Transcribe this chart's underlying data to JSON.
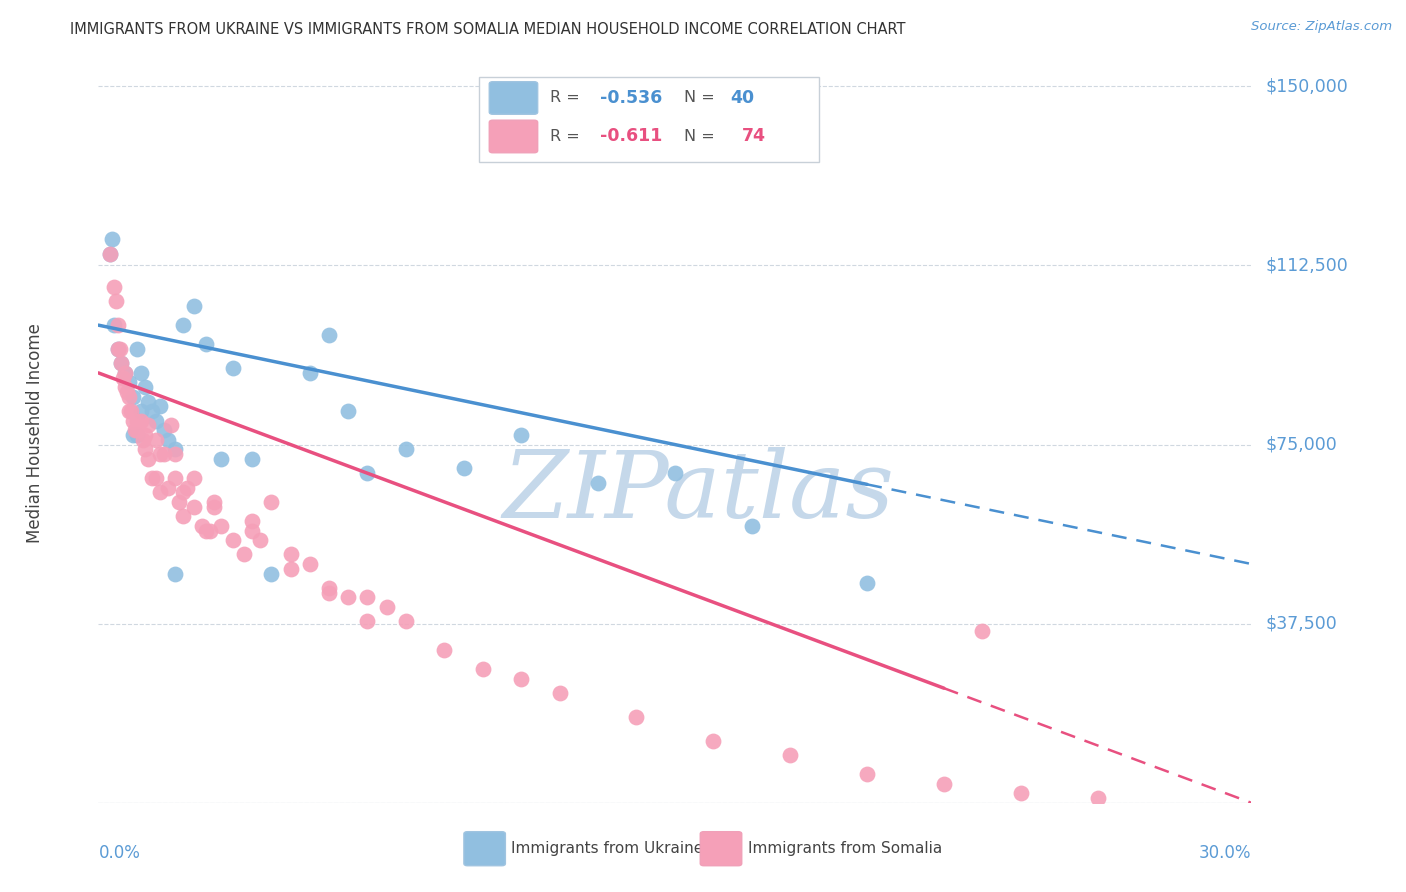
{
  "title": "IMMIGRANTS FROM UKRAINE VS IMMIGRANTS FROM SOMALIA MEDIAN HOUSEHOLD INCOME CORRELATION CHART",
  "source": "Source: ZipAtlas.com",
  "ylabel": "Median Household Income",
  "x_min": 0.0,
  "x_max": 30.0,
  "y_min": 0,
  "y_max": 155000,
  "ukraine_color": "#91bfe0",
  "ukraine_line_color": "#4a90d0",
  "somalia_color": "#f5a0b8",
  "somalia_line_color": "#e85080",
  "ukraine_R": -0.536,
  "ukraine_N": 40,
  "somalia_R": -0.611,
  "somalia_N": 74,
  "watermark": "ZIPatlas",
  "watermark_color": "#c5d8ea",
  "legend_label_ukraine": "Immigrants from Ukraine",
  "legend_label_somalia": "Immigrants from Somalia",
  "y_ticks": [
    0,
    37500,
    75000,
    112500,
    150000
  ],
  "y_tick_labels": [
    "",
    "$37,500",
    "$75,000",
    "$112,500",
    "$150,000"
  ],
  "ukraine_x": [
    0.3,
    0.4,
    0.5,
    0.6,
    0.7,
    0.8,
    0.9,
    1.0,
    1.1,
    1.2,
    1.3,
    1.4,
    1.5,
    1.6,
    1.7,
    1.8,
    2.0,
    2.2,
    2.5,
    2.8,
    3.2,
    3.5,
    4.0,
    5.5,
    6.0,
    7.0,
    8.0,
    9.5,
    11.0,
    13.0,
    15.0,
    17.0,
    20.0,
    0.35,
    1.0,
    2.0,
    4.5,
    6.5,
    0.9,
    1.1
  ],
  "ukraine_y": [
    115000,
    100000,
    95000,
    92000,
    90000,
    88000,
    85000,
    95000,
    90000,
    87000,
    84000,
    82000,
    80000,
    83000,
    78000,
    76000,
    74000,
    100000,
    104000,
    96000,
    72000,
    91000,
    72000,
    90000,
    98000,
    69000,
    74000,
    70000,
    77000,
    67000,
    69000,
    58000,
    46000,
    118000,
    77000,
    48000,
    48000,
    82000,
    77000,
    82000
  ],
  "somalia_x": [
    0.3,
    0.4,
    0.45,
    0.5,
    0.55,
    0.6,
    0.65,
    0.7,
    0.75,
    0.8,
    0.85,
    0.9,
    0.95,
    1.0,
    1.1,
    1.15,
    1.2,
    1.3,
    1.4,
    1.5,
    1.6,
    1.7,
    1.8,
    1.9,
    2.0,
    2.1,
    2.2,
    2.3,
    2.5,
    2.7,
    2.9,
    3.0,
    3.2,
    3.5,
    3.8,
    4.0,
    4.2,
    4.5,
    5.0,
    5.5,
    6.0,
    6.5,
    7.0,
    7.5,
    8.0,
    9.0,
    10.0,
    11.0,
    12.0,
    14.0,
    16.0,
    18.0,
    20.0,
    22.0,
    24.0,
    26.0,
    0.5,
    0.7,
    1.0,
    1.3,
    1.6,
    2.0,
    2.5,
    3.0,
    4.0,
    5.0,
    6.0,
    7.0,
    23.0,
    0.8,
    1.2,
    1.5,
    2.2,
    2.8
  ],
  "somalia_y": [
    115000,
    108000,
    105000,
    100000,
    95000,
    92000,
    89000,
    90000,
    86000,
    85000,
    82000,
    80000,
    78000,
    78000,
    80000,
    76000,
    74000,
    72000,
    68000,
    68000,
    65000,
    73000,
    66000,
    79000,
    68000,
    63000,
    60000,
    66000,
    62000,
    58000,
    57000,
    63000,
    58000,
    55000,
    52000,
    59000,
    55000,
    63000,
    52000,
    50000,
    45000,
    43000,
    43000,
    41000,
    38000,
    32000,
    28000,
    26000,
    23000,
    18000,
    13000,
    10000,
    6000,
    4000,
    2000,
    1000,
    95000,
    87000,
    80000,
    79000,
    73000,
    73000,
    68000,
    62000,
    57000,
    49000,
    44000,
    38000,
    36000,
    82000,
    77000,
    76000,
    65000,
    57000
  ]
}
